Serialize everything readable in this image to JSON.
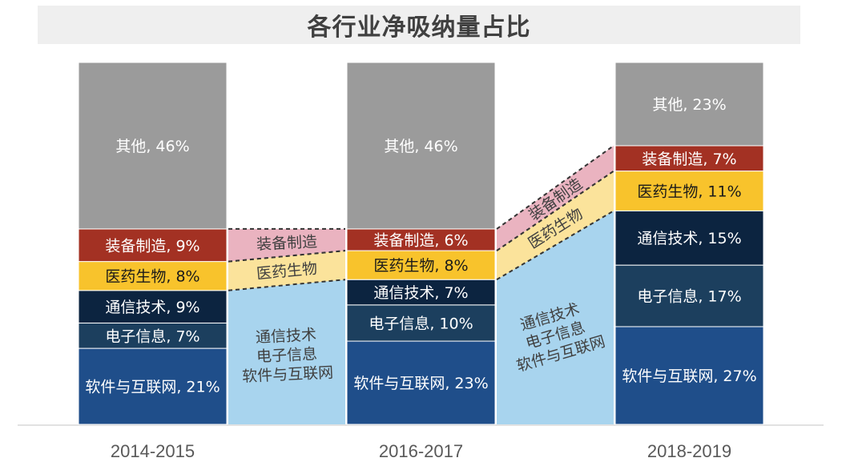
{
  "chart_data": {
    "type": "bar",
    "subtype": "stacked-100",
    "title": "各行业净吸纳量占比",
    "categories": [
      "2014-2015",
      "2016-2017",
      "2018-2019"
    ],
    "series": [
      {
        "name": "软件与互联网",
        "values": [
          21,
          23,
          27
        ],
        "color": "#1f4e8a",
        "text_color": "#ffffff"
      },
      {
        "name": "电子信息",
        "values": [
          7,
          10,
          17
        ],
        "color": "#1c3f5e",
        "text_color": "#ffffff"
      },
      {
        "name": "通信技术",
        "values": [
          9,
          7,
          15
        ],
        "color": "#0c2440",
        "text_color": "#ffffff"
      },
      {
        "name": "医药生物",
        "values": [
          8,
          8,
          11
        ],
        "color": "#f8c32c",
        "text_color": "#1a1a1a"
      },
      {
        "name": "装备制造",
        "values": [
          9,
          6,
          7
        ],
        "color": "#a33123",
        "text_color": "#ffffff"
      },
      {
        "name": "其他",
        "values": [
          46,
          46,
          23
        ],
        "color": "#9b9b9b",
        "text_color": "#ffffff"
      }
    ],
    "flows": [
      {
        "lines": [
          "通信技术",
          "电子信息",
          "软件与互联网"
        ],
        "color": "#a8d4ee"
      },
      {
        "lines": [
          "医药生物"
        ],
        "color": "#fbe39b"
      },
      {
        "lines": [
          "装备制造"
        ],
        "color": "#eab3c0"
      }
    ],
    "ylim": [
      0,
      100
    ],
    "grid": false,
    "legend": "none"
  }
}
